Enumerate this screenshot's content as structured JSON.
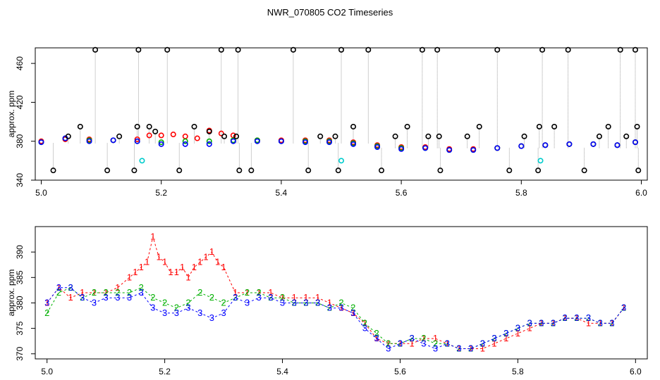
{
  "chart_data": [
    {
      "type": "scatter",
      "title": "NWR_070805  CO2 Timeseries",
      "ylabel": "approx. ppm",
      "xlabel": "",
      "xlim": [
        4.99,
        6.01
      ],
      "ylim": [
        340,
        476
      ],
      "x_ticks": [
        "5.0",
        "5.2",
        "5.4",
        "5.6",
        "5.8",
        "6.0"
      ],
      "y_ticks": [
        "340",
        "380",
        "420",
        "460"
      ],
      "series": [
        {
          "name": "black",
          "color": "#000000",
          "marker": "circle",
          "note": "outlier flags at high/low limits",
          "x": [
            5.02,
            5.045,
            5.065,
            5.09,
            5.11,
            5.13,
            5.155,
            5.16,
            5.162,
            5.18,
            5.19,
            5.21,
            5.23,
            5.255,
            5.28,
            5.3,
            5.305,
            5.325,
            5.328,
            5.33,
            5.35,
            5.42,
            5.445,
            5.465,
            5.49,
            5.495,
            5.5,
            5.52,
            5.545,
            5.567,
            5.59,
            5.61,
            5.635,
            5.645,
            5.66,
            5.663,
            5.665,
            5.71,
            5.73,
            5.76,
            5.78,
            5.805,
            5.828,
            5.83,
            5.835,
            5.855,
            5.878,
            5.905,
            5.93,
            5.945,
            5.965,
            5.975,
            5.99,
            5.993,
            5.995
          ],
          "y": [
            350,
            385,
            395,
            474,
            350,
            385,
            350,
            395,
            474,
            395,
            390,
            474,
            350,
            395,
            390,
            474,
            385,
            385,
            474,
            350,
            350,
            474,
            350,
            385,
            385,
            350,
            474,
            395,
            474,
            350,
            385,
            395,
            474,
            385,
            474,
            385,
            350,
            385,
            395,
            474,
            350,
            385,
            350,
            395,
            474,
            395,
            474,
            350,
            385,
            395,
            474,
            385,
            474,
            395,
            350
          ]
        },
        {
          "name": "red",
          "color": "#ff0000",
          "marker": "circle",
          "x": [
            5.0,
            5.04,
            5.08,
            5.12,
            5.16,
            5.18,
            5.2,
            5.22,
            5.24,
            5.26,
            5.28,
            5.3,
            5.32,
            5.36,
            5.4,
            5.44,
            5.48,
            5.52,
            5.56,
            5.6,
            5.64,
            5.68,
            5.72,
            5.76,
            5.8,
            5.84,
            5.88,
            5.92,
            5.96,
            5.99
          ],
          "y": [
            380,
            382,
            382,
            381,
            382,
            386,
            386,
            387,
            385,
            383,
            391,
            388,
            386,
            381,
            381,
            381,
            381,
            379,
            376,
            374,
            374,
            372,
            372,
            373,
            375,
            376,
            377,
            377,
            376,
            379
          ]
        },
        {
          "name": "green",
          "color": "#00b000",
          "marker": "circle",
          "x": [
            5.0,
            5.04,
            5.08,
            5.12,
            5.16,
            5.2,
            5.24,
            5.28,
            5.32,
            5.36,
            5.4,
            5.44,
            5.48,
            5.52,
            5.56,
            5.6,
            5.64,
            5.68,
            5.72,
            5.76,
            5.8,
            5.84,
            5.88,
            5.92,
            5.96,
            5.99
          ],
          "y": [
            379,
            383,
            381,
            381,
            380,
            379,
            380,
            380,
            381,
            381,
            380,
            380,
            380,
            378,
            375,
            373,
            373,
            371,
            371,
            373,
            375,
            376,
            377,
            377,
            376,
            379
          ]
        },
        {
          "name": "blue",
          "color": "#0000ff",
          "marker": "circle",
          "x": [
            5.0,
            5.04,
            5.08,
            5.12,
            5.16,
            5.2,
            5.24,
            5.28,
            5.32,
            5.36,
            5.4,
            5.44,
            5.48,
            5.52,
            5.56,
            5.6,
            5.64,
            5.68,
            5.72,
            5.76,
            5.8,
            5.84,
            5.88,
            5.92,
            5.96,
            5.99
          ],
          "y": [
            379,
            383,
            380,
            381,
            380,
            377,
            377,
            377,
            380,
            380,
            380,
            379,
            379,
            377,
            374,
            372,
            373,
            371,
            371,
            373,
            375,
            376,
            377,
            377,
            376,
            379
          ]
        },
        {
          "name": "cyan",
          "color": "#00cccc",
          "marker": "circle",
          "x": [
            5.168,
            5.5,
            5.832
          ],
          "y": [
            360,
            360,
            360
          ]
        }
      ]
    },
    {
      "type": "line",
      "title": "",
      "ylabel": "approx. ppm",
      "xlabel": "",
      "xlim": [
        4.98,
        6.02
      ],
      "ylim": [
        369,
        395
      ],
      "x_ticks": [
        "5.0",
        "5.2",
        "5.4",
        "5.6",
        "5.8",
        "6.0"
      ],
      "y_ticks": [
        "370",
        "375",
        "380",
        "385",
        "390"
      ],
      "series": [
        {
          "name": "1",
          "color": "#ff0000",
          "marker": "1",
          "x": [
            5.0,
            5.02,
            5.04,
            5.06,
            5.08,
            5.1,
            5.12,
            5.14,
            5.15,
            5.16,
            5.17,
            5.18,
            5.19,
            5.2,
            5.21,
            5.22,
            5.23,
            5.24,
            5.25,
            5.26,
            5.27,
            5.28,
            5.29,
            5.3,
            5.32,
            5.34,
            5.36,
            5.38,
            5.4,
            5.42,
            5.44,
            5.46,
            5.48,
            5.5,
            5.52,
            5.54,
            5.56,
            5.58,
            5.6,
            5.62,
            5.64,
            5.66,
            5.68,
            5.7,
            5.72,
            5.74,
            5.76,
            5.78,
            5.8,
            5.82,
            5.84,
            5.86,
            5.88,
            5.9,
            5.92,
            5.94,
            5.96,
            5.98
          ],
          "y": [
            380,
            383,
            381,
            382,
            382,
            382,
            383,
            385,
            386,
            387,
            388,
            393,
            389,
            388,
            386,
            386,
            387,
            385,
            387,
            388,
            389,
            390,
            388,
            387,
            382,
            382,
            382,
            382,
            381,
            381,
            381,
            381,
            380,
            379,
            378,
            376,
            373,
            372,
            372,
            372,
            373,
            373,
            372,
            371,
            371,
            371,
            372,
            373,
            374,
            375,
            376,
            376,
            377,
            377,
            376,
            376,
            376,
            379
          ]
        },
        {
          "name": "2",
          "color": "#00b000",
          "marker": "2",
          "x": [
            5.0,
            5.02,
            5.04,
            5.06,
            5.08,
            5.1,
            5.12,
            5.14,
            5.16,
            5.18,
            5.2,
            5.22,
            5.24,
            5.26,
            5.28,
            5.3,
            5.32,
            5.34,
            5.36,
            5.38,
            5.4,
            5.42,
            5.44,
            5.46,
            5.48,
            5.5,
            5.52,
            5.54,
            5.56,
            5.58,
            5.6,
            5.62,
            5.64,
            5.66,
            5.68,
            5.7,
            5.72,
            5.74,
            5.76,
            5.78,
            5.8,
            5.82,
            5.84,
            5.86,
            5.88,
            5.9,
            5.92,
            5.94,
            5.96,
            5.98
          ],
          "y": [
            378,
            382,
            383,
            381,
            382,
            382,
            382,
            382,
            383,
            381,
            380,
            379,
            380,
            382,
            381,
            380,
            381,
            382,
            382,
            381,
            381,
            380,
            380,
            380,
            379,
            380,
            379,
            376,
            374,
            372,
            372,
            373,
            373,
            372,
            372,
            371,
            371,
            372,
            373,
            374,
            375,
            376,
            376,
            376,
            377,
            377,
            377,
            376,
            376,
            379
          ]
        },
        {
          "name": "3",
          "color": "#0000ff",
          "marker": "3",
          "x": [
            5.0,
            5.02,
            5.04,
            5.06,
            5.08,
            5.1,
            5.12,
            5.14,
            5.16,
            5.18,
            5.2,
            5.22,
            5.24,
            5.26,
            5.28,
            5.3,
            5.32,
            5.34,
            5.36,
            5.38,
            5.4,
            5.42,
            5.44,
            5.46,
            5.48,
            5.5,
            5.52,
            5.54,
            5.56,
            5.58,
            5.6,
            5.62,
            5.64,
            5.66,
            5.68,
            5.7,
            5.72,
            5.74,
            5.76,
            5.78,
            5.8,
            5.82,
            5.84,
            5.86,
            5.88,
            5.9,
            5.92,
            5.94,
            5.96,
            5.98
          ],
          "y": [
            380,
            383,
            383,
            381,
            380,
            381,
            381,
            381,
            382,
            379,
            378,
            378,
            379,
            378,
            377,
            378,
            381,
            380,
            381,
            381,
            380,
            380,
            380,
            380,
            379,
            379,
            378,
            375,
            373,
            371,
            372,
            373,
            372,
            371,
            372,
            371,
            371,
            372,
            373,
            374,
            375,
            376,
            376,
            376,
            377,
            377,
            377,
            376,
            376,
            379
          ]
        }
      ]
    }
  ]
}
